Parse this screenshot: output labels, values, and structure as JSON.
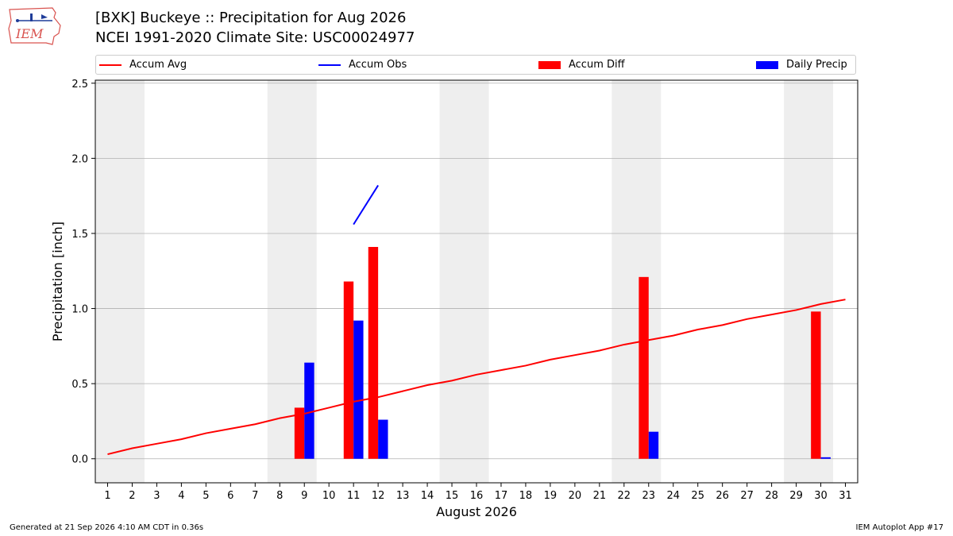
{
  "header": {
    "title_line1": "[BXK] Buckeye :: Precipitation for Aug 2026",
    "title_line2": "NCEI 1991-2020 Climate Site: USC00024977",
    "logo_text": "IEM"
  },
  "footer": {
    "left": "Generated at 21 Sep 2026 4:10 AM CDT in 0.36s",
    "right": "IEM Autoplot App #17"
  },
  "colors": {
    "avg": "#ff0000",
    "obs": "#0000ff",
    "diff": "#ff0000",
    "daily": "#0000ff",
    "weekend_shade": "#eeeeee",
    "grid": "#b0b0b0"
  },
  "chart_data": {
    "type": "bar",
    "xlabel": "August 2026",
    "ylabel": "Precipitation [inch]",
    "xlim": [
      0.5,
      31.5
    ],
    "ylim": [
      -0.16,
      2.52
    ],
    "yticks": [
      0.0,
      0.5,
      1.0,
      1.5,
      2.0,
      2.5
    ],
    "ytick_labels": [
      "0.0",
      "0.5",
      "1.0",
      "1.5",
      "2.0",
      "2.5"
    ],
    "days": [
      1,
      2,
      3,
      4,
      5,
      6,
      7,
      8,
      9,
      10,
      11,
      12,
      13,
      14,
      15,
      16,
      17,
      18,
      19,
      20,
      21,
      22,
      23,
      24,
      25,
      26,
      27,
      28,
      29,
      30,
      31
    ],
    "day_labels": [
      "1",
      "2",
      "3",
      "4",
      "5",
      "6",
      "7",
      "8",
      "9",
      "10",
      "11",
      "12",
      "13",
      "14",
      "15",
      "16",
      "17",
      "18",
      "19",
      "20",
      "21",
      "22",
      "23",
      "24",
      "25",
      "26",
      "27",
      "28",
      "29",
      "30",
      "31"
    ],
    "grid": "horizontal",
    "legend_placement": "top",
    "shaded_weekends": [
      [
        1,
        2
      ],
      [
        8,
        9
      ],
      [
        15,
        16
      ],
      [
        22,
        23
      ],
      [
        29,
        30
      ]
    ],
    "series": [
      {
        "name": "Accum Avg",
        "kind": "line",
        "x": [
          1,
          2,
          3,
          4,
          5,
          6,
          7,
          8,
          9,
          10,
          11,
          12,
          13,
          14,
          15,
          16,
          17,
          18,
          19,
          20,
          21,
          22,
          23,
          24,
          25,
          26,
          27,
          28,
          29,
          30,
          31
        ],
        "values": [
          0.03,
          0.07,
          0.1,
          0.13,
          0.17,
          0.2,
          0.23,
          0.27,
          0.3,
          0.34,
          0.38,
          0.41,
          0.45,
          0.49,
          0.52,
          0.56,
          0.59,
          0.62,
          0.66,
          0.69,
          0.72,
          0.76,
          0.79,
          0.82,
          0.86,
          0.89,
          0.93,
          0.96,
          0.99,
          1.03,
          1.06
        ]
      },
      {
        "name": "Accum Obs",
        "kind": "line",
        "x": [
          11,
          12
        ],
        "values": [
          1.56,
          1.82
        ]
      },
      {
        "name": "Accum Diff",
        "kind": "bar",
        "x": [
          9,
          11,
          12,
          23,
          30
        ],
        "values": [
          0.34,
          1.18,
          1.41,
          1.21,
          0.98
        ]
      },
      {
        "name": "Daily Precip",
        "kind": "bar",
        "x": [
          9,
          11,
          12,
          23,
          30
        ],
        "values": [
          0.64,
          0.92,
          0.26,
          0.18,
          0.01
        ]
      }
    ]
  }
}
